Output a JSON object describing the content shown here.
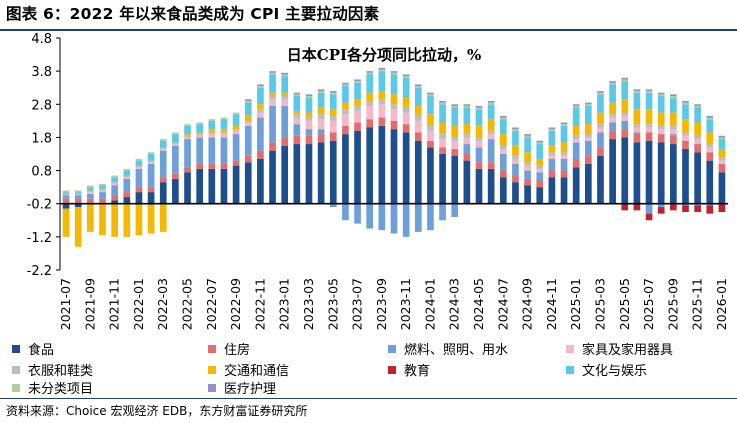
{
  "header": {
    "figure_title": "图表 6：2022 年以来食品类成为 CPI 主要拉动因素"
  },
  "footer": {
    "source": "资料来源：Choice 宏观经济 EDB，东方财富证券研究所"
  },
  "chart_data": {
    "type": "bar",
    "stacked": true,
    "title": "日本CPI各分项同比拉动，%",
    "xlabel": "",
    "ylabel": "",
    "ylim": [
      -2.2,
      4.8
    ],
    "yticks": [
      "4.8",
      "3.8",
      "2.8",
      "1.8",
      "0.8",
      "-0.2",
      "-1.2",
      "-2.2"
    ],
    "ytick_values": [
      4.8,
      3.8,
      2.8,
      1.8,
      0.8,
      -0.2,
      -1.2,
      -2.2
    ],
    "baseline": -0.2,
    "xtick_labels": [
      "2021-07",
      "2021-09",
      "2021-11",
      "2022-01",
      "2022-03",
      "2022-05",
      "2022-07",
      "2022-09",
      "2022-11",
      "2023-01",
      "2023-03",
      "2023-05",
      "2023-07",
      "2023-09",
      "2023-11",
      "2024-01",
      "2024-03",
      "2024-05",
      "2024-07",
      "2024-09",
      "2024-11",
      "2025-01",
      "2025-03",
      "2025-05",
      "2025-07",
      "2025-09",
      "2025-11",
      "2026-01"
    ],
    "categories": [
      "2021-07",
      "2021-08",
      "2021-09",
      "2021-10",
      "2021-11",
      "2021-12",
      "2022-01",
      "2022-02",
      "2022-03",
      "2022-04",
      "2022-05",
      "2022-06",
      "2022-07",
      "2022-08",
      "2022-09",
      "2022-10",
      "2022-11",
      "2022-12",
      "2023-01",
      "2023-02",
      "2023-03",
      "2023-04",
      "2023-05",
      "2023-06",
      "2023-07",
      "2023-08",
      "2023-09",
      "2023-10",
      "2023-11",
      "2023-12",
      "2024-01",
      "2024-02",
      "2024-03",
      "2024-04",
      "2024-05",
      "2024-06",
      "2024-07",
      "2024-08",
      "2024-09",
      "2024-10",
      "2024-11",
      "2024-12",
      "2025-01",
      "2025-02",
      "2025-03",
      "2025-04",
      "2025-05",
      "2025-06",
      "2025-07",
      "2025-08",
      "2025-09",
      "2025-10",
      "2025-11",
      "2025-12",
      "2026-01"
    ],
    "legend": "bottom",
    "grid": false,
    "series": [
      {
        "name": "食品",
        "color": "#1f4e8c",
        "values": [
          -0.15,
          -0.1,
          0.0,
          0.0,
          0.1,
          0.2,
          0.35,
          0.35,
          0.65,
          0.75,
          0.95,
          1.05,
          1.05,
          1.05,
          1.15,
          1.25,
          1.35,
          1.6,
          1.75,
          1.8,
          1.8,
          1.85,
          1.9,
          2.1,
          2.2,
          2.3,
          2.35,
          2.25,
          2.15,
          1.9,
          1.7,
          1.5,
          1.45,
          1.3,
          1.05,
          1.05,
          0.8,
          0.65,
          0.55,
          0.5,
          0.8,
          0.8,
          1.1,
          1.2,
          1.45,
          1.95,
          2.0,
          1.85,
          1.9,
          1.85,
          1.8,
          1.65,
          1.55,
          1.3,
          0.95
        ]
      },
      {
        "name": "住房",
        "color": "#e26d6d",
        "values": [
          0.15,
          0.15,
          0.15,
          0.15,
          0.15,
          0.15,
          0.15,
          0.15,
          0.15,
          0.15,
          0.15,
          0.15,
          0.15,
          0.15,
          0.15,
          0.2,
          0.25,
          0.25,
          0.25,
          0.25,
          0.25,
          0.25,
          0.25,
          0.25,
          0.25,
          0.25,
          0.25,
          0.25,
          0.25,
          0.25,
          0.2,
          0.2,
          0.2,
          0.2,
          0.2,
          0.2,
          0.2,
          0.2,
          0.2,
          0.2,
          0.2,
          0.2,
          0.25,
          0.25,
          0.25,
          0.25,
          0.25,
          0.25,
          0.25,
          0.25,
          0.25,
          0.25,
          0.25,
          0.25,
          0.25
        ]
      },
      {
        "name": "燃料、照明、用水",
        "color": "#6f9fd8",
        "values": [
          0.1,
          0.1,
          0.15,
          0.2,
          0.3,
          0.4,
          0.55,
          0.7,
          0.8,
          0.85,
          0.85,
          0.8,
          0.8,
          0.8,
          0.8,
          0.9,
          1.0,
          1.1,
          0.95,
          0.35,
          0.2,
          0.15,
          -0.1,
          -0.5,
          -0.6,
          -0.75,
          -0.8,
          -0.9,
          -1.0,
          -0.85,
          -0.8,
          -0.5,
          -0.4,
          0.3,
          0.45,
          0.7,
          0.5,
          0.35,
          0.25,
          0.25,
          0.35,
          0.35,
          0.5,
          0.45,
          0.45,
          0.25,
          0.25,
          0.05,
          -0.3,
          -0.1,
          0.05,
          -0.05,
          -0.05,
          -0.05,
          0.0
        ]
      },
      {
        "name": "家具及家用器具",
        "color": "#f4b8c8",
        "values": [
          0.0,
          0.0,
          0.05,
          0.05,
          0.05,
          0.05,
          0.05,
          0.05,
          0.05,
          0.05,
          0.05,
          0.05,
          0.1,
          0.1,
          0.1,
          0.1,
          0.15,
          0.2,
          0.2,
          0.2,
          0.25,
          0.3,
          0.35,
          0.35,
          0.35,
          0.4,
          0.4,
          0.35,
          0.35,
          0.35,
          0.3,
          0.25,
          0.25,
          0.2,
          0.2,
          0.15,
          0.15,
          0.15,
          0.15,
          0.1,
          0.1,
          0.1,
          0.1,
          0.1,
          0.15,
          0.15,
          0.15,
          0.15,
          0.15,
          0.15,
          0.15,
          0.15,
          0.15,
          0.15,
          0.1
        ]
      },
      {
        "name": "衣服和鞋类",
        "color": "#bdbdbd",
        "values": [
          0.05,
          0.05,
          0.05,
          0.05,
          0.05,
          0.05,
          0.05,
          0.05,
          0.05,
          0.05,
          0.05,
          0.05,
          0.05,
          0.05,
          0.05,
          0.05,
          0.1,
          0.1,
          0.1,
          0.1,
          0.1,
          0.15,
          0.15,
          0.15,
          0.15,
          0.15,
          0.15,
          0.15,
          0.15,
          0.15,
          0.15,
          0.15,
          0.1,
          0.1,
          0.1,
          0.1,
          0.1,
          0.1,
          0.1,
          0.1,
          0.1,
          0.1,
          0.1,
          0.1,
          0.1,
          0.1,
          0.1,
          0.1,
          0.1,
          0.1,
          0.1,
          0.1,
          0.1,
          0.1,
          0.1
        ]
      },
      {
        "name": "交通和通信",
        "color": "#f5b800",
        "values": [
          -0.85,
          -1.2,
          -0.85,
          -0.95,
          -1.0,
          -1.0,
          -0.95,
          -0.9,
          -0.85,
          0.0,
          0.05,
          0.05,
          0.1,
          0.1,
          0.1,
          0.15,
          0.15,
          0.1,
          0.1,
          0.1,
          0.15,
          0.2,
          0.2,
          0.2,
          0.2,
          0.25,
          0.25,
          0.3,
          0.3,
          0.3,
          0.35,
          0.35,
          0.35,
          0.3,
          0.35,
          0.35,
          0.35,
          0.3,
          0.3,
          0.2,
          0.2,
          0.3,
          0.3,
          0.3,
          0.35,
          0.35,
          0.4,
          0.45,
          0.45,
          0.4,
          0.4,
          0.4,
          0.4,
          0.35,
          0.25
        ]
      },
      {
        "name": "教育",
        "color": "#c0222b",
        "values": [
          0,
          0,
          0,
          0,
          0,
          0,
          0,
          0,
          0,
          0,
          0,
          0,
          0,
          0,
          0,
          0,
          0,
          0,
          0,
          0,
          0,
          0,
          0,
          0,
          0,
          0,
          0,
          0,
          0,
          0,
          0,
          0,
          0,
          0,
          0,
          0,
          0,
          0,
          0,
          0,
          0,
          0,
          0,
          0,
          0,
          0,
          -0.2,
          -0.2,
          -0.2,
          -0.2,
          -0.2,
          -0.2,
          -0.2,
          -0.25,
          -0.25
        ]
      },
      {
        "name": "文化与娱乐",
        "color": "#5bc8e8",
        "values": [
          0.05,
          0.05,
          0.1,
          0.1,
          0.15,
          0.15,
          0.15,
          0.2,
          0.2,
          0.25,
          0.25,
          0.25,
          0.25,
          0.3,
          0.35,
          0.4,
          0.5,
          0.55,
          0.5,
          0.45,
          0.45,
          0.45,
          0.45,
          0.5,
          0.5,
          0.55,
          0.6,
          0.6,
          0.6,
          0.55,
          0.55,
          0.55,
          0.55,
          0.5,
          0.5,
          0.45,
          0.45,
          0.45,
          0.45,
          0.45,
          0.45,
          0.5,
          0.55,
          0.55,
          0.55,
          0.55,
          0.55,
          0.5,
          0.5,
          0.5,
          0.45,
          0.45,
          0.45,
          0.4,
          0.3
        ]
      },
      {
        "name": "未分类项目",
        "color": "#a8d49a",
        "values": [
          0.05,
          0.05,
          0.05,
          0.05,
          0.05,
          0.05,
          0.05,
          0.05,
          0.05,
          0.05,
          0.05,
          0.05,
          0.05,
          0.05,
          0.05,
          0.05,
          0.05,
          0.05,
          0.05,
          0.05,
          0.05,
          0.05,
          0.05,
          0.05,
          0.05,
          0.05,
          0.05,
          0.05,
          0.05,
          0.05,
          0.05,
          0.05,
          0.05,
          0.05,
          0.05,
          0.05,
          0.05,
          0.05,
          0.05,
          0.05,
          0.05,
          0.05,
          0.05,
          0.05,
          0.05,
          0.05,
          0.05,
          0.05,
          0.05,
          0.05,
          0.05,
          0.05,
          0.05,
          0.05,
          0.05
        ]
      },
      {
        "name": "医疗护理",
        "color": "#9b8fc7",
        "values": [
          0.0,
          0.0,
          0.0,
          0.0,
          0.0,
          0.0,
          0.0,
          0.0,
          0.0,
          0.0,
          0.0,
          0.0,
          0.0,
          0.0,
          0.0,
          0.05,
          0.05,
          0.05,
          0.05,
          0.05,
          0.05,
          0.05,
          0.05,
          0.05,
          0.05,
          0.05,
          0.05,
          0.05,
          0.05,
          0.05,
          0.05,
          0.05,
          0.05,
          0.05,
          0.05,
          0.05,
          0.05,
          0.05,
          0.05,
          0.05,
          0.05,
          0.05,
          0.05,
          0.05,
          0.05,
          0.05,
          0.05,
          0.05,
          0.05,
          0.05,
          0.05,
          0.05,
          0.05,
          0.05,
          0.05
        ]
      }
    ]
  }
}
